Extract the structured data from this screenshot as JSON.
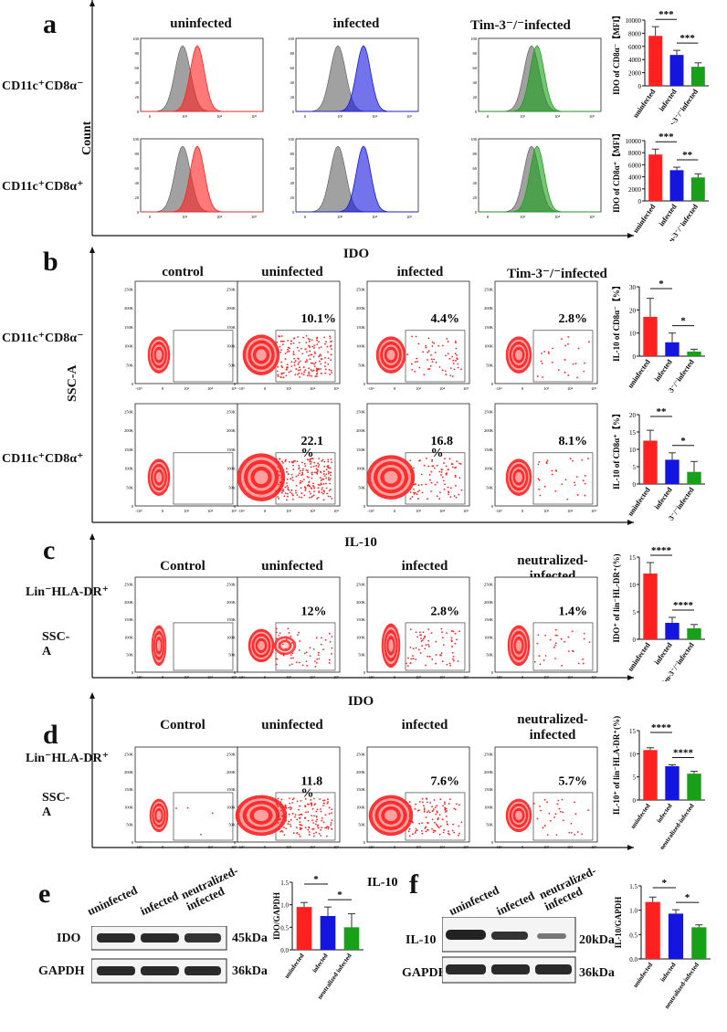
{
  "colors": {
    "red": "#ff2020",
    "blue": "#1515e0",
    "green": "#18a018",
    "gray": "#909090",
    "band": "#2a2a2a"
  },
  "panel_a": {
    "letter": "a",
    "headers": [
      "uninfected",
      "infected",
      "Tim-3⁻/⁻infected"
    ],
    "rows": [
      "CD11c⁺CD8α⁻",
      "CD11c⁺CD8α⁺"
    ],
    "y_label": "Count",
    "chart_data": [
      {
        "type": "bar",
        "ylabel": "IDO of CD8α⁻【MFI】",
        "categories": [
          "uninfected",
          "infected",
          "Tim-3⁻/⁻infected"
        ],
        "values": [
          7600,
          4700,
          2900
        ],
        "errors": [
          1400,
          700,
          600
        ],
        "ylim": [
          0,
          10000
        ],
        "yticks": [
          "0",
          "2000",
          "4000",
          "6000",
          "8000",
          "10000"
        ],
        "sig": [
          "***",
          "***"
        ]
      },
      {
        "type": "bar",
        "ylabel": "IDO of CD8α⁺【MFI】",
        "categories": [
          "uninfected",
          "infected",
          "Tim-3⁻/⁻infected"
        ],
        "values": [
          7700,
          5100,
          3900
        ],
        "errors": [
          900,
          500,
          600
        ],
        "ylim": [
          0,
          10000
        ],
        "yticks": [
          "0",
          "2000",
          "4000",
          "6000",
          "8000",
          "10000"
        ],
        "sig": [
          "***",
          "**"
        ]
      }
    ]
  },
  "panel_b": {
    "letter": "b",
    "title": "IDO",
    "headers": [
      "control",
      "uninfected",
      "infected",
      "Tim-3⁻/⁻infected"
    ],
    "rows": [
      "CD11c⁺CD8α⁻",
      "CD11c⁺CD8α⁺"
    ],
    "y_label": "SSC-A",
    "percents": [
      [
        "",
        "10.1%",
        "4.4%",
        "2.8%"
      ],
      [
        "",
        "22.1\n%",
        "16.8\n%",
        "8.1%"
      ]
    ],
    "chart_data": [
      {
        "type": "bar",
        "ylabel": "IL-10 of CD8α⁻【%】",
        "categories": [
          "uninfected",
          "infected",
          "Tim-3⁻/⁻infected"
        ],
        "values": [
          17,
          6,
          2
        ],
        "errors": [
          8,
          4,
          1
        ],
        "ylim": [
          0,
          30
        ],
        "yticks": [
          "0",
          "10",
          "20",
          "30"
        ],
        "sig": [
          "*",
          "*"
        ]
      },
      {
        "type": "bar",
        "ylabel": "IL-10 of CD8α⁺【%】",
        "categories": [
          "uninfected",
          "infected",
          "Tim-3⁻/⁻infected"
        ],
        "values": [
          12.5,
          7,
          3.5
        ],
        "errors": [
          3,
          2,
          3
        ],
        "ylim": [
          0,
          20
        ],
        "yticks": [
          "0",
          "5",
          "10",
          "15",
          "20"
        ],
        "sig": [
          "**",
          "*"
        ]
      }
    ]
  },
  "panel_c": {
    "letter": "c",
    "title": "IL-10",
    "headers": [
      "Control",
      "uninfected",
      "infected",
      "neutralized-\ninfected"
    ],
    "row": "Lin⁻HLA-DR⁺",
    "y_label": "SSC-\nA",
    "percents": [
      "",
      "12%",
      "2.8%",
      "1.4%"
    ],
    "chart_data": {
      "type": "bar",
      "ylabel": "IDO⁺ of lin⁻HL-DR⁺(%)",
      "categories": [
        "uninfected",
        "infected",
        "Tim-3⁻/⁻infected"
      ],
      "values": [
        12,
        3,
        2
      ],
      "errors": [
        2,
        1,
        0.7
      ],
      "ylim": [
        0,
        15
      ],
      "yticks": [
        "0",
        "5",
        "10",
        "15"
      ],
      "sig": [
        "****",
        "****"
      ]
    }
  },
  "panel_d": {
    "letter": "d",
    "title": "IDO",
    "headers": [
      "Control",
      "uninfected",
      "infected",
      "neutralized-\ninfected"
    ],
    "row": "Lin⁻HLA-DR⁺",
    "y_label": "SSC-\nA",
    "percents": [
      "",
      "11.8\n%",
      "7.6%",
      "5.7%"
    ],
    "chart_data": {
      "type": "bar",
      "ylabel": "IL-10⁺ of lin⁻HLA-DR⁺(%)",
      "categories": [
        "uninfected",
        "infected",
        "neutralized-infected"
      ],
      "values": [
        10.8,
        7.3,
        5.7
      ],
      "errors": [
        0.5,
        0.3,
        0.5
      ],
      "ylim": [
        0,
        15
      ],
      "yticks": [
        "0",
        "5",
        "10",
        "15"
      ],
      "sig": [
        "****",
        "****"
      ]
    }
  },
  "panel_e": {
    "letter": "e",
    "lanes": [
      "uninfected",
      "infected",
      "neutralized-\ninfected"
    ],
    "blots": [
      {
        "name": "IDO",
        "size": "45kDa"
      },
      {
        "name": "GAPDH",
        "size": "36kDa"
      }
    ],
    "chart_data": {
      "type": "bar",
      "title": "IL-10",
      "ylabel": "IDO/GAPDH",
      "categories": [
        "uninfected",
        "infected",
        "neutralized infected"
      ],
      "values": [
        0.95,
        0.75,
        0.5
      ],
      "errors": [
        0.1,
        0.2,
        0.3
      ],
      "ylim": [
        0,
        1.5
      ],
      "yticks": [
        "0.0",
        "0.5",
        "1.0",
        "1.5"
      ],
      "sig": [
        "*",
        "*"
      ]
    }
  },
  "panel_f": {
    "letter": "f",
    "lanes": [
      "uninfected",
      "infected",
      "neutralized-\ninfected"
    ],
    "blots": [
      {
        "name": "IL-10",
        "size": "20kDa"
      },
      {
        "name": "GAPDH",
        "size": "36kDa"
      }
    ],
    "chart_data": {
      "type": "bar",
      "ylabel": "IL-10/GAPDH",
      "categories": [
        "uninfected",
        "infected",
        "neutralized-infected"
      ],
      "values": [
        1.17,
        0.93,
        0.65
      ],
      "errors": [
        0.1,
        0.08,
        0.05
      ],
      "ylim": [
        0,
        1.5
      ],
      "yticks": [
        "0.0",
        "0.5",
        "1.0",
        "1.5"
      ],
      "sig": [
        "*",
        "*"
      ]
    }
  },
  "axis_ticks": {
    "hist_y": [
      "0",
      "20",
      "40",
      "60",
      "80",
      "100"
    ],
    "hist_x": [
      "0",
      "10³",
      "10⁴",
      "10⁵"
    ],
    "dot_y": [
      "0",
      "50K",
      "100K",
      "150K",
      "200K",
      "250K"
    ],
    "dot_x": [
      "-10³",
      "0",
      "10³",
      "10⁴",
      "10⁵"
    ]
  }
}
